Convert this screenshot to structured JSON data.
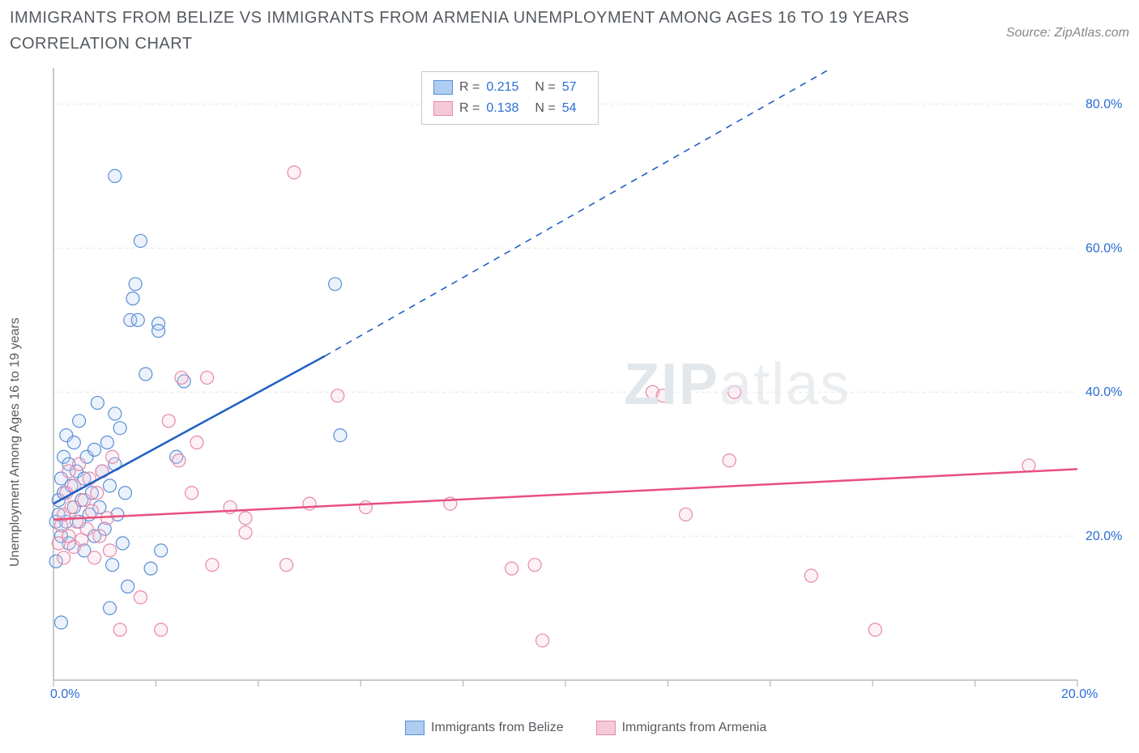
{
  "title": "IMMIGRANTS FROM BELIZE VS IMMIGRANTS FROM ARMENIA UNEMPLOYMENT AMONG AGES 16 TO 19 YEARS CORRELATION CHART",
  "source_label": "Source: ZipAtlas.com",
  "watermark": {
    "part1": "ZIP",
    "part2": "atlas"
  },
  "y_axis_label": "Unemployment Among Ages 16 to 19 years",
  "chart": {
    "type": "scatter",
    "xlim": [
      0,
      20
    ],
    "ylim": [
      0,
      85
    ],
    "x_ticks": [
      0,
      2,
      4,
      6,
      8,
      10,
      12,
      14,
      16,
      18,
      20
    ],
    "x_tick_labels": {
      "0": "0.0%",
      "20": "20.0%"
    },
    "y_ticks": [
      20,
      40,
      60,
      80
    ],
    "y_tick_labels": {
      "20": "20.0%",
      "40": "40.0%",
      "60": "60.0%",
      "80": "80.0%"
    },
    "grid_color": "#e6e6e6",
    "axis_color": "#b8b8b8",
    "background": "#ffffff",
    "marker_radius": 8,
    "marker_stroke_width": 1.2,
    "marker_fill_opacity": 0.25,
    "series": [
      {
        "name": "Immigrants from Belize",
        "color_stroke": "#5a8fd6",
        "color_fill": "#aecdf0",
        "trend_color": "#1f5fc4",
        "R_label": "R =",
        "R": "0.215",
        "N_label": "N =",
        "N": "57",
        "trend": {
          "x1": 0,
          "y1": 24.5,
          "x2_solid": 5.3,
          "y2_solid": 45,
          "x2_dash": 15.2,
          "y2_dash": 85
        },
        "points": [
          [
            0.05,
            22
          ],
          [
            0.1,
            23
          ],
          [
            0.1,
            25
          ],
          [
            0.15,
            20
          ],
          [
            0.15,
            28
          ],
          [
            0.2,
            31
          ],
          [
            0.2,
            26
          ],
          [
            0.25,
            22
          ],
          [
            0.25,
            34
          ],
          [
            0.3,
            19
          ],
          [
            0.3,
            30
          ],
          [
            0.35,
            27
          ],
          [
            0.4,
            24
          ],
          [
            0.4,
            33
          ],
          [
            0.45,
            29
          ],
          [
            0.5,
            22
          ],
          [
            0.5,
            36
          ],
          [
            0.55,
            25
          ],
          [
            0.6,
            28
          ],
          [
            0.6,
            18
          ],
          [
            0.65,
            31
          ],
          [
            0.7,
            23
          ],
          [
            0.75,
            26
          ],
          [
            0.8,
            20
          ],
          [
            0.8,
            32
          ],
          [
            0.86,
            38.5
          ],
          [
            0.9,
            24
          ],
          [
            0.95,
            29
          ],
          [
            1.0,
            21
          ],
          [
            1.05,
            33
          ],
          [
            1.1,
            27
          ],
          [
            1.15,
            16
          ],
          [
            1.2,
            30
          ],
          [
            1.25,
            23
          ],
          [
            1.3,
            35
          ],
          [
            1.35,
            19
          ],
          [
            1.4,
            26
          ],
          [
            1.2,
            70
          ],
          [
            1.7,
            61
          ],
          [
            1.6,
            55
          ],
          [
            1.55,
            53
          ],
          [
            1.5,
            50
          ],
          [
            1.65,
            50
          ],
          [
            2.05,
            49.5
          ],
          [
            2.05,
            48.5
          ],
          [
            2.4,
            31
          ],
          [
            1.8,
            42.5
          ],
          [
            1.9,
            15.5
          ],
          [
            2.55,
            41.5
          ],
          [
            1.1,
            10
          ],
          [
            1.45,
            13
          ],
          [
            0.15,
            8
          ],
          [
            0.05,
            16.5
          ],
          [
            2.1,
            18
          ],
          [
            1.2,
            37
          ],
          [
            5.5,
            55
          ],
          [
            5.6,
            34
          ]
        ]
      },
      {
        "name": "Immigrants from Armenia",
        "color_stroke": "#e589a8",
        "color_fill": "#f7c9d8",
        "trend_color": "#e94f7d",
        "R_label": "R =",
        "R": "0.138",
        "N_label": "N =",
        "N": "54",
        "trend": {
          "x1": 0,
          "y1": 22.3,
          "x2_solid": 20,
          "y2_solid": 29.3,
          "x2_dash": 20,
          "y2_dash": 29.3
        },
        "points": [
          [
            0.1,
            19
          ],
          [
            0.15,
            21.5
          ],
          [
            0.2,
            23
          ],
          [
            0.2,
            17
          ],
          [
            0.25,
            26
          ],
          [
            0.3,
            20
          ],
          [
            0.3,
            29
          ],
          [
            0.35,
            24
          ],
          [
            0.4,
            18.5
          ],
          [
            0.4,
            27
          ],
          [
            0.45,
            22
          ],
          [
            0.5,
            30
          ],
          [
            0.55,
            19.5
          ],
          [
            0.6,
            25
          ],
          [
            0.65,
            21
          ],
          [
            0.7,
            28
          ],
          [
            0.75,
            23.5
          ],
          [
            0.8,
            17
          ],
          [
            0.85,
            26
          ],
          [
            0.9,
            20
          ],
          [
            0.95,
            29
          ],
          [
            1.05,
            22.5
          ],
          [
            1.1,
            18
          ],
          [
            1.15,
            31
          ],
          [
            1.7,
            11.5
          ],
          [
            2.25,
            36
          ],
          [
            2.5,
            42
          ],
          [
            2.45,
            30.5
          ],
          [
            2.7,
            26
          ],
          [
            2.8,
            33
          ],
          [
            3.0,
            42
          ],
          [
            3.1,
            16
          ],
          [
            3.45,
            24
          ],
          [
            3.75,
            22.5
          ],
          [
            3.75,
            20.5
          ],
          [
            4.7,
            70.5
          ],
          [
            5.55,
            39.5
          ],
          [
            4.55,
            16
          ],
          [
            5.0,
            24.5
          ],
          [
            6.1,
            24
          ],
          [
            7.75,
            24.5
          ],
          [
            8.95,
            15.5
          ],
          [
            9.4,
            16
          ],
          [
            9.55,
            5.5
          ],
          [
            11.7,
            40
          ],
          [
            11.9,
            39.5
          ],
          [
            12.35,
            23
          ],
          [
            13.3,
            40
          ],
          [
            13.2,
            30.5
          ],
          [
            14.8,
            14.5
          ],
          [
            16.05,
            7
          ],
          [
            19.05,
            29.8
          ],
          [
            2.1,
            7
          ],
          [
            1.3,
            7
          ]
        ]
      }
    ]
  },
  "legend_bottom": [
    {
      "label": "Immigrants from Belize",
      "stroke": "#5a8fd6",
      "fill": "#aecdf0"
    },
    {
      "label": "Immigrants from Armenia",
      "stroke": "#e589a8",
      "fill": "#f7c9d8"
    }
  ]
}
